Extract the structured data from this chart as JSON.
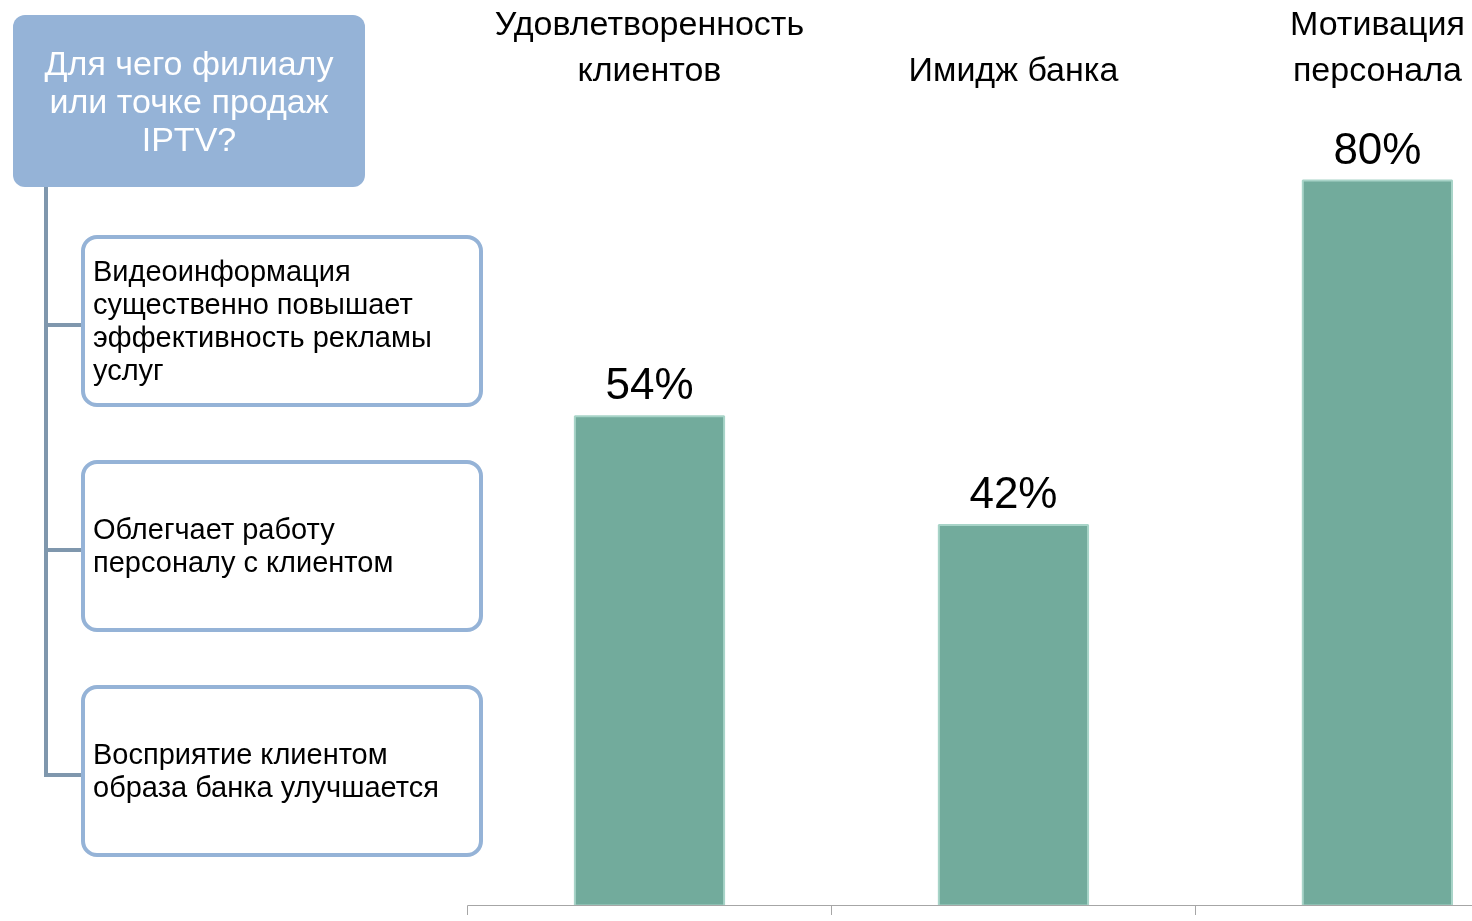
{
  "chart_data": {
    "type": "bar",
    "categories": [
      "Удовлетворенность\nклиентов",
      "Имидж банка",
      "Мотивация\nперсонала"
    ],
    "values": [
      54,
      42,
      80
    ],
    "value_labels": [
      "54%",
      "42%",
      "80%"
    ],
    "color": "#72ab9c",
    "grid": false,
    "annotations": [
      "Для чего филиалу или точке продаж IPTV?",
      "Видеоинформация существенно повышает эффективность рекламы услуг",
      "Облегчает работу персоналу с клиентом",
      "Восприятие клиентом образа банка улучшается"
    ]
  }
}
